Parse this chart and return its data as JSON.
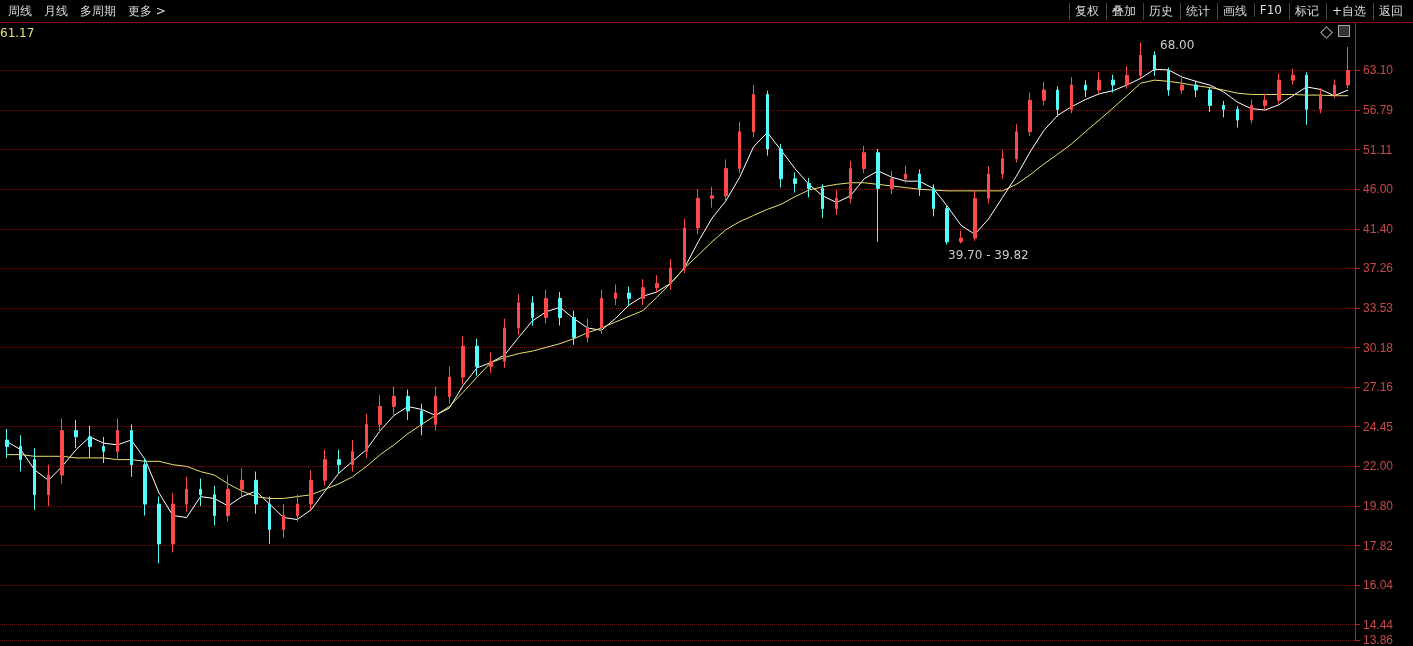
{
  "chart_data": {
    "type": "candlestick",
    "log": "y",
    "grid": "y",
    "tick_labels": "y",
    "marker": "none",
    "categories": [
      null,
      null,
      null,
      null,
      null,
      null,
      null,
      null,
      null,
      null,
      null,
      null,
      null,
      null,
      null,
      null,
      null,
      null,
      null,
      null,
      null,
      null,
      null,
      null,
      null,
      null,
      null,
      null,
      null,
      null,
      null,
      null,
      null,
      null,
      null,
      null,
      null,
      null,
      null,
      null,
      null,
      null,
      null,
      null,
      null,
      null,
      null,
      null,
      null,
      null,
      null,
      null,
      null,
      null,
      null,
      null,
      null,
      null,
      null,
      null,
      null,
      null,
      null,
      null,
      null,
      null,
      null,
      null,
      null,
      null,
      null,
      null,
      null,
      null,
      null,
      null,
      null,
      null,
      null,
      null,
      null,
      null,
      null,
      null,
      null,
      null,
      null,
      null,
      null,
      null,
      null,
      null,
      null,
      null,
      null,
      null,
      null,
      null
    ],
    "ylim": [
      13.86,
      71.6
    ],
    "yticks": [
      13.86,
      14.44,
      16.04,
      17.82,
      {
        "value": 19.8,
        "label": "19.80"
      },
      {
        "value": 22,
        "label": "22.00"
      },
      24.45,
      27.16,
      30.18,
      33.53,
      37.26,
      {
        "value": 41.4,
        "label": "41.40"
      },
      {
        "value": 46,
        "label": "46.00"
      },
      51.11,
      56.79,
      {
        "value": 63.1,
        "label": "63.10"
      }
    ],
    "ohlc": [
      [
        23.6,
        24.3,
        22.5,
        23.2
      ],
      [
        23.2,
        23.9,
        21.7,
        22.4
      ],
      [
        22.4,
        23.1,
        19.6,
        20.4
      ],
      [
        20.4,
        22.1,
        19.8,
        21.5
      ],
      [
        21.5,
        25.0,
        21.0,
        24.2
      ],
      [
        24.2,
        24.9,
        23.1,
        23.8
      ],
      [
        23.8,
        24.5,
        22.5,
        23.2
      ],
      [
        23.2,
        23.8,
        22.2,
        22.9
      ],
      [
        22.9,
        25.0,
        22.4,
        24.2
      ],
      [
        24.2,
        24.6,
        21.4,
        22.1
      ],
      [
        22.1,
        22.5,
        19.3,
        19.9
      ],
      [
        19.9,
        20.3,
        17.0,
        17.9
      ],
      [
        17.9,
        20.5,
        17.5,
        19.9
      ],
      [
        19.9,
        21.4,
        19.5,
        20.7
      ],
      [
        20.7,
        21.3,
        19.8,
        20.4
      ],
      [
        20.4,
        20.9,
        18.8,
        19.3
      ],
      [
        19.3,
        21.5,
        19.0,
        20.7
      ],
      [
        20.7,
        21.9,
        20.3,
        21.2
      ],
      [
        21.2,
        21.7,
        19.4,
        19.9
      ],
      [
        19.9,
        20.3,
        17.9,
        18.6
      ],
      [
        18.6,
        19.9,
        18.2,
        19.3
      ],
      [
        19.3,
        20.4,
        19.0,
        19.9
      ],
      [
        19.9,
        21.8,
        19.6,
        21.2
      ],
      [
        21.2,
        23.0,
        20.9,
        22.4
      ],
      [
        22.4,
        23.0,
        21.6,
        22.1
      ],
      [
        22.1,
        23.6,
        21.7,
        22.9
      ],
      [
        22.9,
        25.3,
        22.5,
        24.6
      ],
      [
        24.6,
        26.6,
        24.1,
        25.8
      ],
      [
        25.8,
        27.2,
        25.2,
        26.5
      ],
      [
        26.5,
        27.0,
        24.9,
        25.5
      ],
      [
        25.5,
        26.0,
        23.9,
        24.6
      ],
      [
        24.6,
        27.2,
        24.2,
        26.5
      ],
      [
        26.5,
        28.7,
        26.0,
        27.9
      ],
      [
        27.9,
        31.1,
        27.4,
        30.3
      ],
      [
        30.3,
        30.9,
        28.0,
        28.7
      ],
      [
        28.7,
        29.8,
        28.2,
        29.1
      ],
      [
        29.1,
        32.6,
        28.6,
        31.8
      ],
      [
        31.8,
        34.8,
        31.2,
        34.0
      ],
      [
        34.0,
        34.6,
        32.0,
        32.7
      ],
      [
        32.7,
        35.2,
        32.2,
        34.4
      ],
      [
        34.4,
        35.0,
        32.0,
        32.7
      ],
      [
        32.7,
        33.3,
        30.4,
        31.0
      ],
      [
        31.0,
        32.6,
        30.6,
        31.8
      ],
      [
        31.8,
        35.2,
        31.3,
        34.4
      ],
      [
        34.4,
        35.7,
        33.8,
        34.9
      ],
      [
        34.9,
        35.5,
        33.7,
        34.4
      ],
      [
        34.4,
        36.2,
        33.8,
        35.4
      ],
      [
        35.4,
        36.6,
        34.9,
        35.8
      ],
      [
        35.8,
        38.2,
        35.2,
        37.3
      ],
      [
        37.3,
        42.5,
        36.8,
        41.5
      ],
      [
        41.5,
        46.0,
        40.8,
        44.9
      ],
      [
        44.9,
        46.3,
        43.8,
        45.2
      ],
      [
        45.2,
        49.8,
        44.6,
        48.6
      ],
      [
        48.6,
        55.0,
        48.0,
        53.6
      ],
      [
        53.6,
        60.7,
        52.8,
        59.2
      ],
      [
        59.2,
        59.8,
        50.3,
        51.2
      ],
      [
        51.2,
        51.9,
        46.2,
        47.3
      ],
      [
        47.3,
        48.1,
        45.6,
        46.7
      ],
      [
        46.7,
        47.4,
        45.0,
        46.1
      ],
      [
        46.1,
        46.6,
        42.6,
        43.7
      ],
      [
        43.7,
        45.9,
        43.0,
        44.9
      ],
      [
        44.9,
        49.6,
        44.3,
        48.6
      ],
      [
        48.6,
        51.6,
        48.0,
        50.7
      ],
      [
        50.7,
        51.2,
        40.0,
        46.1
      ],
      [
        46.1,
        48.3,
        45.4,
        47.3
      ],
      [
        47.3,
        49.0,
        46.8,
        47.9
      ],
      [
        47.9,
        48.5,
        45.2,
        46.1
      ],
      [
        46.1,
        46.6,
        42.8,
        43.7
      ],
      [
        43.7,
        44.0,
        39.7,
        40.0
      ],
      [
        40.0,
        41.2,
        39.82,
        40.4
      ],
      [
        40.4,
        45.8,
        40.1,
        44.9
      ],
      [
        44.9,
        48.9,
        44.3,
        47.9
      ],
      [
        47.9,
        51.0,
        47.3,
        49.9
      ],
      [
        49.9,
        54.7,
        49.4,
        53.6
      ],
      [
        53.6,
        59.5,
        53.0,
        58.3
      ],
      [
        58.3,
        61.2,
        57.5,
        59.9
      ],
      [
        59.9,
        60.5,
        55.8,
        56.9
      ],
      [
        56.9,
        62.0,
        56.3,
        60.7
      ],
      [
        60.7,
        61.5,
        58.8,
        59.9
      ],
      [
        59.9,
        62.8,
        59.3,
        61.5
      ],
      [
        61.5,
        62.4,
        59.5,
        60.7
      ],
      [
        60.7,
        63.8,
        60.1,
        62.3
      ],
      [
        62.3,
        68.0,
        61.8,
        65.7
      ],
      [
        65.7,
        66.4,
        62.2,
        63.1
      ],
      [
        63.1,
        63.6,
        59.0,
        59.9
      ],
      [
        59.9,
        61.8,
        59.3,
        60.7
      ],
      [
        60.7,
        61.4,
        58.8,
        59.9
      ],
      [
        59.9,
        60.4,
        56.5,
        57.5
      ],
      [
        57.5,
        58.2,
        55.7,
        56.9
      ],
      [
        56.9,
        57.4,
        54.2,
        55.3
      ],
      [
        55.3,
        58.4,
        54.8,
        57.5
      ],
      [
        57.5,
        59.3,
        57.0,
        58.3
      ],
      [
        58.3,
        62.6,
        57.8,
        61.5
      ],
      [
        61.5,
        63.4,
        60.8,
        62.3
      ],
      [
        62.3,
        62.8,
        54.6,
        56.9
      ],
      [
        56.9,
        60.2,
        56.3,
        59.2
      ],
      [
        59.2,
        61.6,
        58.6,
        60.7
      ],
      [
        60.7,
        67.2,
        60.2,
        63.1
      ]
    ],
    "colors": [
      "#54fcfc",
      "#54fcfc",
      "#54fcfc",
      "#ff4a4a",
      "#ff4a4a",
      "#54fcfc",
      "#54fcfc",
      "#54fcfc",
      "#ff4a4a",
      "#54fcfc",
      "#54fcfc",
      "#54fcfc",
      "#ff4a4a",
      "#ff4a4a",
      "#54fcfc",
      "#54fcfc",
      "#ff4a4a",
      "#ff4a4a",
      "#54fcfc",
      "#54fcfc",
      "#ff4a4a",
      "#ff4a4a",
      "#ff4a4a",
      "#ff4a4a",
      "#54fcfc",
      "#ff4a4a",
      "#ff4a4a",
      "#ff4a4a",
      "#ff4a4a",
      "#54fcfc",
      "#54fcfc",
      "#ff4a4a",
      "#ff4a4a",
      "#ff4a4a",
      "#54fcfc",
      "#ff4a4a",
      "#ff4a4a",
      "#ff4a4a",
      "#54fcfc",
      "#ff4a4a",
      "#54fcfc",
      "#54fcfc",
      "#ff4a4a",
      "#ff4a4a",
      "#ff4a4a",
      "#54fcfc",
      "#ff4a4a",
      "#ff4a4a",
      "#ff4a4a",
      "#ff4a4a",
      "#ff4a4a",
      "#ff4a4a",
      "#ff4a4a",
      "#ff4a4a",
      "#ff4a4a",
      "#54fcfc",
      "#54fcfc",
      "#54fcfc",
      "#54fcfc",
      "#54fcfc",
      "#ff4a4a",
      "#ff4a4a",
      "#ff4a4a",
      "#54fcfc",
      "#ff4a4a",
      "#ff4a4a",
      "#54fcfc",
      "#54fcfc",
      "#54fcfc",
      "#ff4a4a",
      "#ff4a4a",
      "#ff4a4a",
      "#ff4a4a",
      "#ff4a4a",
      "#ff4a4a",
      "#ff4a4a",
      "#54fcfc",
      "#ff4a4a",
      "#54fcfc",
      "#ff4a4a",
      "#54fcfc",
      "#ff4a4a",
      "#ff4a4a",
      "#54fcfc",
      "#54fcfc",
      "#ff4a4a",
      "#54fcfc",
      "#54fcfc",
      "#54fcfc",
      "#54fcfc",
      "#ff4a4a",
      "#ff4a4a",
      "#ff4a4a",
      "#ff4a4a",
      "#54fcfc",
      "#ff4a4a",
      "#ff4a4a",
      "#ff4a4a"
    ],
    "series": [
      {
        "type": "line",
        "color": "#ffffff",
        "values": [
          23.5,
          23.0,
          21.8,
          21.2,
          22.0,
          23.0,
          23.8,
          23.4,
          23.3,
          23.6,
          22.4,
          20.5,
          19.3,
          19.2,
          20.3,
          20.2,
          19.8,
          20.3,
          20.6,
          19.9,
          19.2,
          19.1,
          19.6,
          20.6,
          21.6,
          22.3,
          23.0,
          24.2,
          25.2,
          25.8,
          25.6,
          25.2,
          25.7,
          27.3,
          28.6,
          29.0,
          29.6,
          31.0,
          32.4,
          33.2,
          33.6,
          32.6,
          31.8,
          31.6,
          32.6,
          33.8,
          34.6,
          35.0,
          35.8,
          37.3,
          40.0,
          42.6,
          44.6,
          47.5,
          51.5,
          53.5,
          51.0,
          48.6,
          46.6,
          45.2,
          44.4,
          45.2,
          47.3,
          48.3,
          47.5,
          47.0,
          47.0,
          46.1,
          44.0,
          41.8,
          40.8,
          42.5,
          45.0,
          47.6,
          50.8,
          53.8,
          56.0,
          57.3,
          58.4,
          59.3,
          59.8,
          60.7,
          61.8,
          63.3,
          63.2,
          62.0,
          61.3,
          60.7,
          59.6,
          58.0,
          57.0,
          56.8,
          57.6,
          59.0,
          60.4,
          60.0,
          59.0,
          59.9
        ]
      },
      {
        "type": "line",
        "color": "#e8e070",
        "values": [
          22.7,
          22.7,
          22.6,
          22.6,
          22.6,
          22.5,
          22.5,
          22.5,
          22.4,
          22.4,
          22.3,
          22.3,
          22.1,
          22.0,
          21.7,
          21.5,
          21.0,
          20.6,
          20.3,
          20.2,
          20.2,
          20.3,
          20.4,
          20.7,
          21.0,
          21.4,
          22.0,
          22.7,
          23.3,
          24.0,
          24.6,
          25.2,
          25.8,
          26.8,
          27.9,
          29.0,
          29.4,
          29.7,
          29.9,
          30.2,
          30.5,
          30.9,
          31.4,
          31.8,
          32.3,
          32.8,
          33.3,
          34.5,
          35.8,
          37.3,
          38.6,
          40.0,
          41.3,
          42.2,
          42.9,
          43.6,
          44.2,
          45.1,
          45.9,
          46.3,
          46.6,
          46.8,
          46.8,
          46.6,
          46.4,
          46.2,
          46.0,
          45.9,
          45.8,
          45.8,
          45.8,
          45.8,
          45.8,
          46.6,
          47.8,
          49.2,
          50.5,
          51.9,
          53.6,
          55.3,
          57.1,
          59.0,
          61.0,
          61.5,
          61.3,
          61.0,
          60.6,
          60.3,
          59.9,
          59.4,
          59.2,
          59.2,
          59.2,
          59.2,
          59.1,
          59.1,
          59.0,
          59.0
        ]
      }
    ],
    "annotations": [
      "周线",
      "月线",
      "多周期",
      "更多 >",
      "复权",
      "叠加",
      "历史",
      "统计",
      "画线",
      "F10",
      "标记",
      "+自选",
      "返回",
      "61.17",
      "68.00",
      "39.70 - 39.82"
    ]
  }
}
